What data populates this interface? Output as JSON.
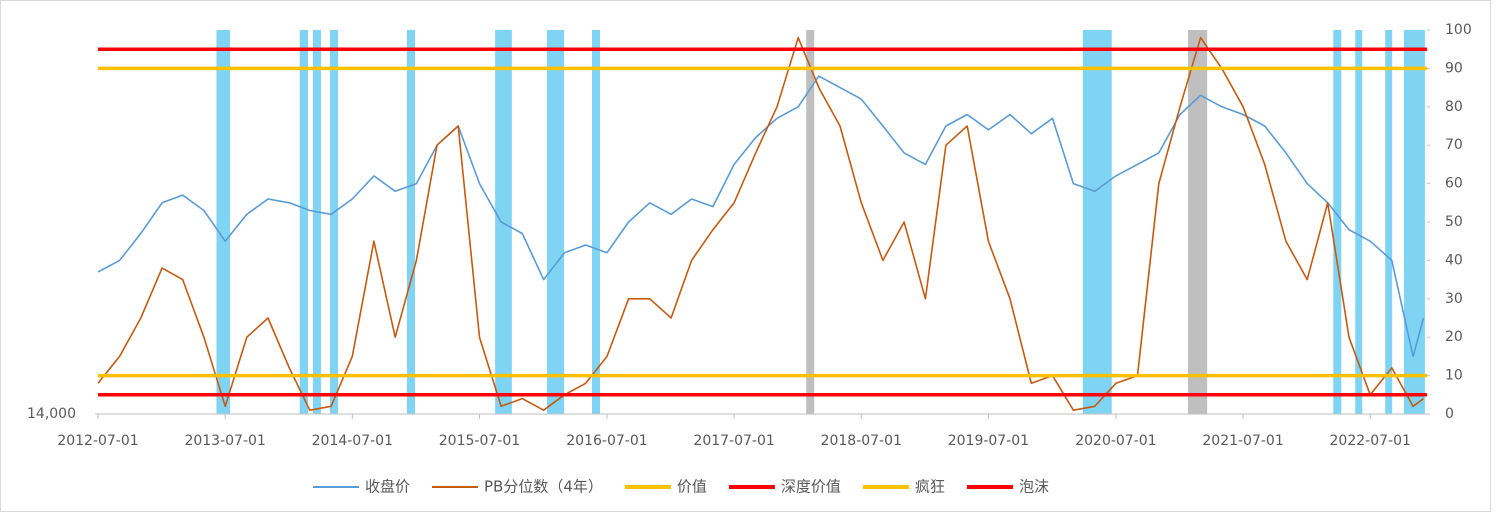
{
  "chart_data": {
    "type": "line",
    "x": [
      "2012-07-01",
      "2012-09-01",
      "2012-11-01",
      "2013-01-01",
      "2013-03-01",
      "2013-05-01",
      "2013-07-01",
      "2013-09-01",
      "2013-11-01",
      "2014-01-01",
      "2014-03-01",
      "2014-05-01",
      "2014-07-01",
      "2014-09-01",
      "2014-11-01",
      "2015-01-01",
      "2015-03-01",
      "2015-05-01",
      "2015-07-01",
      "2015-09-01",
      "2015-11-01",
      "2016-01-01",
      "2016-03-01",
      "2016-05-01",
      "2016-07-01",
      "2016-09-01",
      "2016-11-01",
      "2017-01-01",
      "2017-03-01",
      "2017-05-01",
      "2017-07-01",
      "2017-09-01",
      "2017-11-01",
      "2018-01-01",
      "2018-03-01",
      "2018-05-01",
      "2018-07-01",
      "2018-09-01",
      "2018-11-01",
      "2019-01-01",
      "2019-03-01",
      "2019-05-01",
      "2019-07-01",
      "2019-09-01",
      "2019-11-01",
      "2020-01-01",
      "2020-03-01",
      "2020-05-01",
      "2020-07-01",
      "2020-09-01",
      "2020-11-01",
      "2021-01-01",
      "2021-03-01",
      "2021-05-01",
      "2021-07-01",
      "2021-09-01",
      "2021-11-01",
      "2022-01-01",
      "2022-03-01",
      "2022-05-01",
      "2022-07-01",
      "2022-09-01",
      "2022-11-01",
      "2022-12-01"
    ],
    "xlim": [
      "2012-07-01",
      "2022-12-11"
    ],
    "xticks": [
      "2012-07-01",
      "2013-07-01",
      "2014-07-01",
      "2015-07-01",
      "2016-07-01",
      "2017-07-01",
      "2018-07-01",
      "2019-07-01",
      "2020-07-01",
      "2021-07-01",
      "2022-07-01"
    ],
    "ylim": [
      14000,
      64000
    ],
    "yticks": [
      {
        "value": 14000,
        "label": "14,000"
      }
    ],
    "y2lim": [
      0,
      100
    ],
    "y2ticks": [
      0,
      10,
      20,
      30,
      40,
      50,
      60,
      70,
      80,
      90,
      100
    ],
    "series": [
      {
        "name": "收盘价",
        "color": "#5b9bd5",
        "values": [
          32500,
          34000,
          37500,
          41500,
          42500,
          40500,
          36500,
          40000,
          42000,
          41500,
          40500,
          40000,
          42000,
          45000,
          43000,
          44000,
          49000,
          51500,
          44000,
          39000,
          37500,
          31500,
          35000,
          36000,
          35000,
          39000,
          41500,
          40000,
          42000,
          41000,
          46500,
          50000,
          52500,
          54000,
          58000,
          56500,
          55000,
          51500,
          48000,
          46500,
          51500,
          53000,
          51000,
          53000,
          50500,
          52500,
          44000,
          43000,
          45000,
          46500,
          48000,
          53000,
          55500,
          54000,
          53000,
          51500,
          48000,
          44000,
          41500,
          38000,
          36500,
          34000,
          21500,
          26500
        ]
      },
      {
        "name": "PB分位数（4年）",
        "color": "#c55a11",
        "axis": "y2",
        "values": [
          8,
          15,
          25,
          38,
          35,
          20,
          2,
          20,
          25,
          12,
          1,
          2,
          15,
          45,
          20,
          40,
          70,
          75,
          20,
          2,
          4,
          1,
          5,
          8,
          15,
          30,
          30,
          25,
          40,
          48,
          55,
          68,
          80,
          98,
          85,
          75,
          55,
          40,
          50,
          30,
          70,
          75,
          45,
          30,
          8,
          10,
          1,
          2,
          8,
          10,
          60,
          80,
          98,
          90,
          80,
          65,
          45,
          35,
          55,
          20,
          5,
          12,
          2,
          4
        ]
      },
      {
        "name": "价值",
        "color": "#ffc000",
        "axis": "y2",
        "value": 10
      },
      {
        "name": "深度价值",
        "color": "#ff0000",
        "axis": "y2",
        "value": 5
      },
      {
        "name": "疯狂",
        "color": "#ffc000",
        "axis": "y2",
        "value": 90
      },
      {
        "name": "泡沫",
        "color": "#ff0000",
        "axis": "y2",
        "value": 95
      }
    ],
    "shaded_periods": [
      {
        "start": "2013-06-06",
        "end": "2013-07-15",
        "color": "#7fd4f4"
      },
      {
        "start": "2014-01-31",
        "end": "2014-02-24",
        "color": "#7fd4f4"
      },
      {
        "start": "2014-03-10",
        "end": "2014-04-02",
        "color": "#7fd4f4"
      },
      {
        "start": "2014-04-28",
        "end": "2014-05-21",
        "color": "#7fd4f4"
      },
      {
        "start": "2014-12-05",
        "end": "2014-12-28",
        "color": "#7fd4f4"
      },
      {
        "start": "2015-08-15",
        "end": "2015-10-02",
        "color": "#7fd4f4"
      },
      {
        "start": "2016-01-11",
        "end": "2016-02-29",
        "color": "#7fd4f4"
      },
      {
        "start": "2016-05-19",
        "end": "2016-06-11",
        "color": "#7fd4f4"
      },
      {
        "start": "2018-01-24",
        "end": "2018-02-16",
        "color": "#bfbfbf"
      },
      {
        "start": "2020-03-28",
        "end": "2020-06-19",
        "color": "#7fd4f4"
      },
      {
        "start": "2021-01-24",
        "end": "2021-03-20",
        "color": "#bfbfbf"
      },
      {
        "start": "2022-03-17",
        "end": "2022-04-09",
        "color": "#7fd4f4"
      },
      {
        "start": "2022-05-19",
        "end": "2022-06-08",
        "color": "#7fd4f4"
      },
      {
        "start": "2022-08-13",
        "end": "2022-09-02",
        "color": "#7fd4f4"
      },
      {
        "start": "2022-10-06",
        "end": "2022-12-05",
        "color": "#7fd4f4"
      }
    ]
  }
}
